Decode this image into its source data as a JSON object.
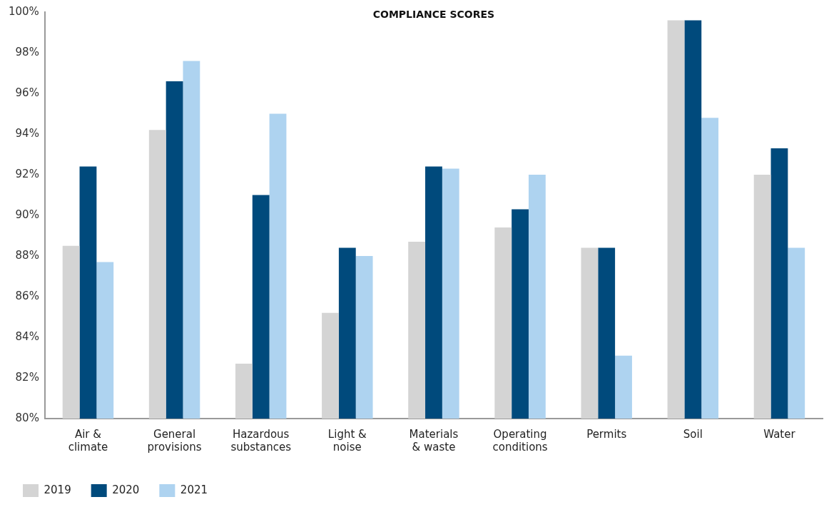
{
  "chart_data": {
    "type": "bar",
    "title": "COMPLIANCE SCORES",
    "categories": [
      "Air & climate",
      "General provisions",
      "Hazardous substances",
      "Light & noise",
      "Materials & waste",
      "Operating conditions",
      "Permits",
      "Soil",
      "Water"
    ],
    "series": [
      {
        "name": "2019",
        "color": "#d4d4d4",
        "values": [
          88.5,
          94.2,
          82.7,
          85.2,
          88.7,
          89.4,
          88.4,
          99.6,
          92.0
        ]
      },
      {
        "name": "2020",
        "color": "#004a7c",
        "values": [
          92.4,
          96.6,
          91.0,
          88.4,
          92.4,
          90.3,
          88.4,
          99.6,
          93.3
        ]
      },
      {
        "name": "2021",
        "color": "#aed3f0",
        "values": [
          87.7,
          97.6,
          95.0,
          88.0,
          92.3,
          92.0,
          83.1,
          94.8,
          88.4
        ]
      }
    ],
    "ylim": [
      80,
      100
    ],
    "yticks": [
      {
        "value": 80,
        "label": "80%"
      },
      {
        "value": 82,
        "label": "82%"
      },
      {
        "value": 84,
        "label": "84%"
      },
      {
        "value": 86,
        "label": "86%"
      },
      {
        "value": 88,
        "label": "88%"
      },
      {
        "value": 90,
        "label": "90%"
      },
      {
        "value": 92,
        "label": "92%"
      },
      {
        "value": 94,
        "label": "94%"
      },
      {
        "value": 96,
        "label": "96%"
      },
      {
        "value": 98,
        "label": "98%"
      },
      {
        "value": 100,
        "label": "100%"
      }
    ],
    "grid": false,
    "legend": "bottom left"
  }
}
